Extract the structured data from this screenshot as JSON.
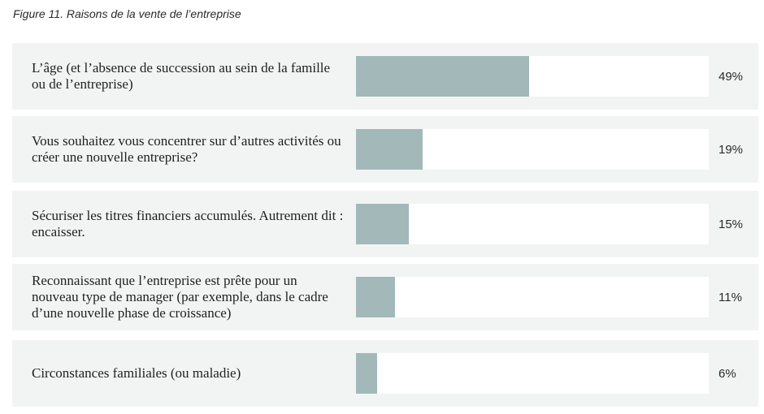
{
  "figure": {
    "title": "Figure 11. Raisons de la vente de l’entreprise"
  },
  "chart_data": {
    "type": "bar",
    "orientation": "horizontal",
    "title": "Figure 11. Raisons de la vente de l’entreprise",
    "categories": [
      "L’âge (et l’absence de succession au sein de la famille ou de l’entreprise)",
      "Vous souhaitez vous concentrer sur d’autres activités ou créer une nouvelle entreprise?",
      "Sécuriser les titres financiers accumulés. Autrement dit : encaisser.",
      "Reconnaissant que l’entreprise est prête pour un nouveau type de manager (par exemple, dans le cadre d’une nouvelle phase de croissance)",
      "Circonstances familiales (ou maladie)"
    ],
    "values": [
      49,
      19,
      15,
      11,
      6
    ],
    "value_labels": [
      "49%",
      "19%",
      "15%",
      "11%",
      "6%"
    ],
    "xlim": [
      0,
      100
    ],
    "grid": false,
    "colors": {
      "bar": "#a3b9b9",
      "track": "#ffffff",
      "row_background": "#f2f4f3"
    }
  }
}
